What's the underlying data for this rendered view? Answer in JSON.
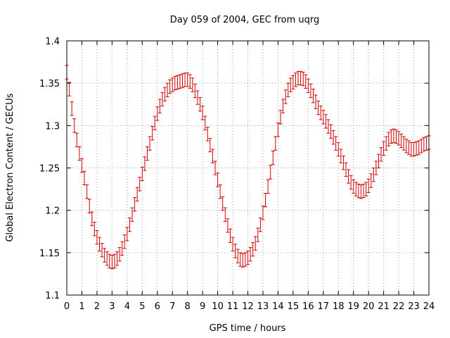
{
  "chart_data": {
    "type": "scatter",
    "title": "Day 059 of 2004, GEC from uqrg",
    "xlabel": "GPS time / hours",
    "ylabel": "Global Electron Content / GECUs",
    "xlim": [
      0,
      24
    ],
    "ylim": [
      1.1,
      1.4
    ],
    "grid": true,
    "x_ticks": [
      "0",
      "1",
      "2",
      "3",
      "4",
      "5",
      "6",
      "7",
      "8",
      "9",
      "10",
      "11",
      "12",
      "13",
      "14",
      "15",
      "16",
      "17",
      "18",
      "19",
      "20",
      "21",
      "22",
      "23",
      "24"
    ],
    "y_ticks": [
      "1.1",
      "1.15",
      "1.2",
      "1.25",
      "1.3",
      "1.35",
      "1.4"
    ],
    "error_bar": 0.008,
    "series": [
      {
        "name": "GEC",
        "color": "#cc0000",
        "x": [
          0,
          0.167,
          0.333,
          0.5,
          0.667,
          0.833,
          1,
          1.167,
          1.333,
          1.5,
          1.667,
          1.833,
          2,
          2.167,
          2.333,
          2.5,
          2.667,
          2.833,
          3,
          3.167,
          3.333,
          3.5,
          3.667,
          3.833,
          4,
          4.167,
          4.333,
          4.5,
          4.667,
          4.833,
          5,
          5.167,
          5.333,
          5.5,
          5.667,
          5.833,
          6,
          6.167,
          6.333,
          6.5,
          6.667,
          6.833,
          7,
          7.167,
          7.333,
          7.5,
          7.667,
          7.833,
          8,
          8.167,
          8.333,
          8.5,
          8.667,
          8.833,
          9,
          9.167,
          9.333,
          9.5,
          9.667,
          9.833,
          10,
          10.167,
          10.333,
          10.5,
          10.667,
          10.833,
          11,
          11.167,
          11.333,
          11.5,
          11.667,
          11.833,
          12,
          12.167,
          12.333,
          12.5,
          12.667,
          12.833,
          13,
          13.167,
          13.333,
          13.5,
          13.667,
          13.833,
          14,
          14.167,
          14.333,
          14.5,
          14.667,
          14.833,
          15,
          15.167,
          15.333,
          15.5,
          15.667,
          15.833,
          16,
          16.167,
          16.333,
          16.5,
          16.667,
          16.833,
          17,
          17.167,
          17.333,
          17.5,
          17.667,
          17.833,
          18,
          18.167,
          18.333,
          18.5,
          18.667,
          18.833,
          19,
          19.167,
          19.333,
          19.5,
          19.667,
          19.833,
          20,
          20.167,
          20.333,
          20.5,
          20.667,
          20.833,
          21,
          21.167,
          21.333,
          21.5,
          21.667,
          21.833,
          22,
          22.167,
          22.333,
          22.5,
          22.667,
          22.833,
          23,
          23.167,
          23.333,
          23.5,
          23.667,
          23.833,
          24
        ],
        "values": [
          1.363,
          1.343,
          1.32,
          1.3,
          1.283,
          1.267,
          1.253,
          1.238,
          1.222,
          1.205,
          1.19,
          1.178,
          1.168,
          1.16,
          1.153,
          1.147,
          1.143,
          1.14,
          1.139,
          1.14,
          1.143,
          1.148,
          1.155,
          1.163,
          1.172,
          1.183,
          1.195,
          1.207,
          1.219,
          1.231,
          1.243,
          1.255,
          1.267,
          1.279,
          1.291,
          1.303,
          1.314,
          1.323,
          1.331,
          1.337,
          1.342,
          1.346,
          1.348,
          1.35,
          1.351,
          1.352,
          1.353,
          1.354,
          1.354,
          1.352,
          1.348,
          1.341,
          1.333,
          1.325,
          1.315,
          1.303,
          1.29,
          1.277,
          1.264,
          1.25,
          1.236,
          1.222,
          1.208,
          1.195,
          1.182,
          1.17,
          1.16,
          1.152,
          1.146,
          1.142,
          1.141,
          1.142,
          1.144,
          1.148,
          1.154,
          1.161,
          1.171,
          1.183,
          1.197,
          1.212,
          1.228,
          1.245,
          1.262,
          1.279,
          1.295,
          1.31,
          1.323,
          1.334,
          1.342,
          1.348,
          1.351,
          1.354,
          1.356,
          1.356,
          1.355,
          1.352,
          1.347,
          1.341,
          1.335,
          1.328,
          1.321,
          1.315,
          1.31,
          1.305,
          1.299,
          1.293,
          1.286,
          1.279,
          1.272,
          1.264,
          1.256,
          1.248,
          1.24,
          1.233,
          1.228,
          1.225,
          1.223,
          1.222,
          1.223,
          1.225,
          1.229,
          1.235,
          1.242,
          1.25,
          1.258,
          1.266,
          1.273,
          1.279,
          1.284,
          1.287,
          1.288,
          1.287,
          1.285,
          1.282,
          1.279,
          1.276,
          1.274,
          1.272,
          1.272,
          1.273,
          1.274,
          1.276,
          1.278,
          1.279,
          1.28
        ]
      }
    ]
  }
}
